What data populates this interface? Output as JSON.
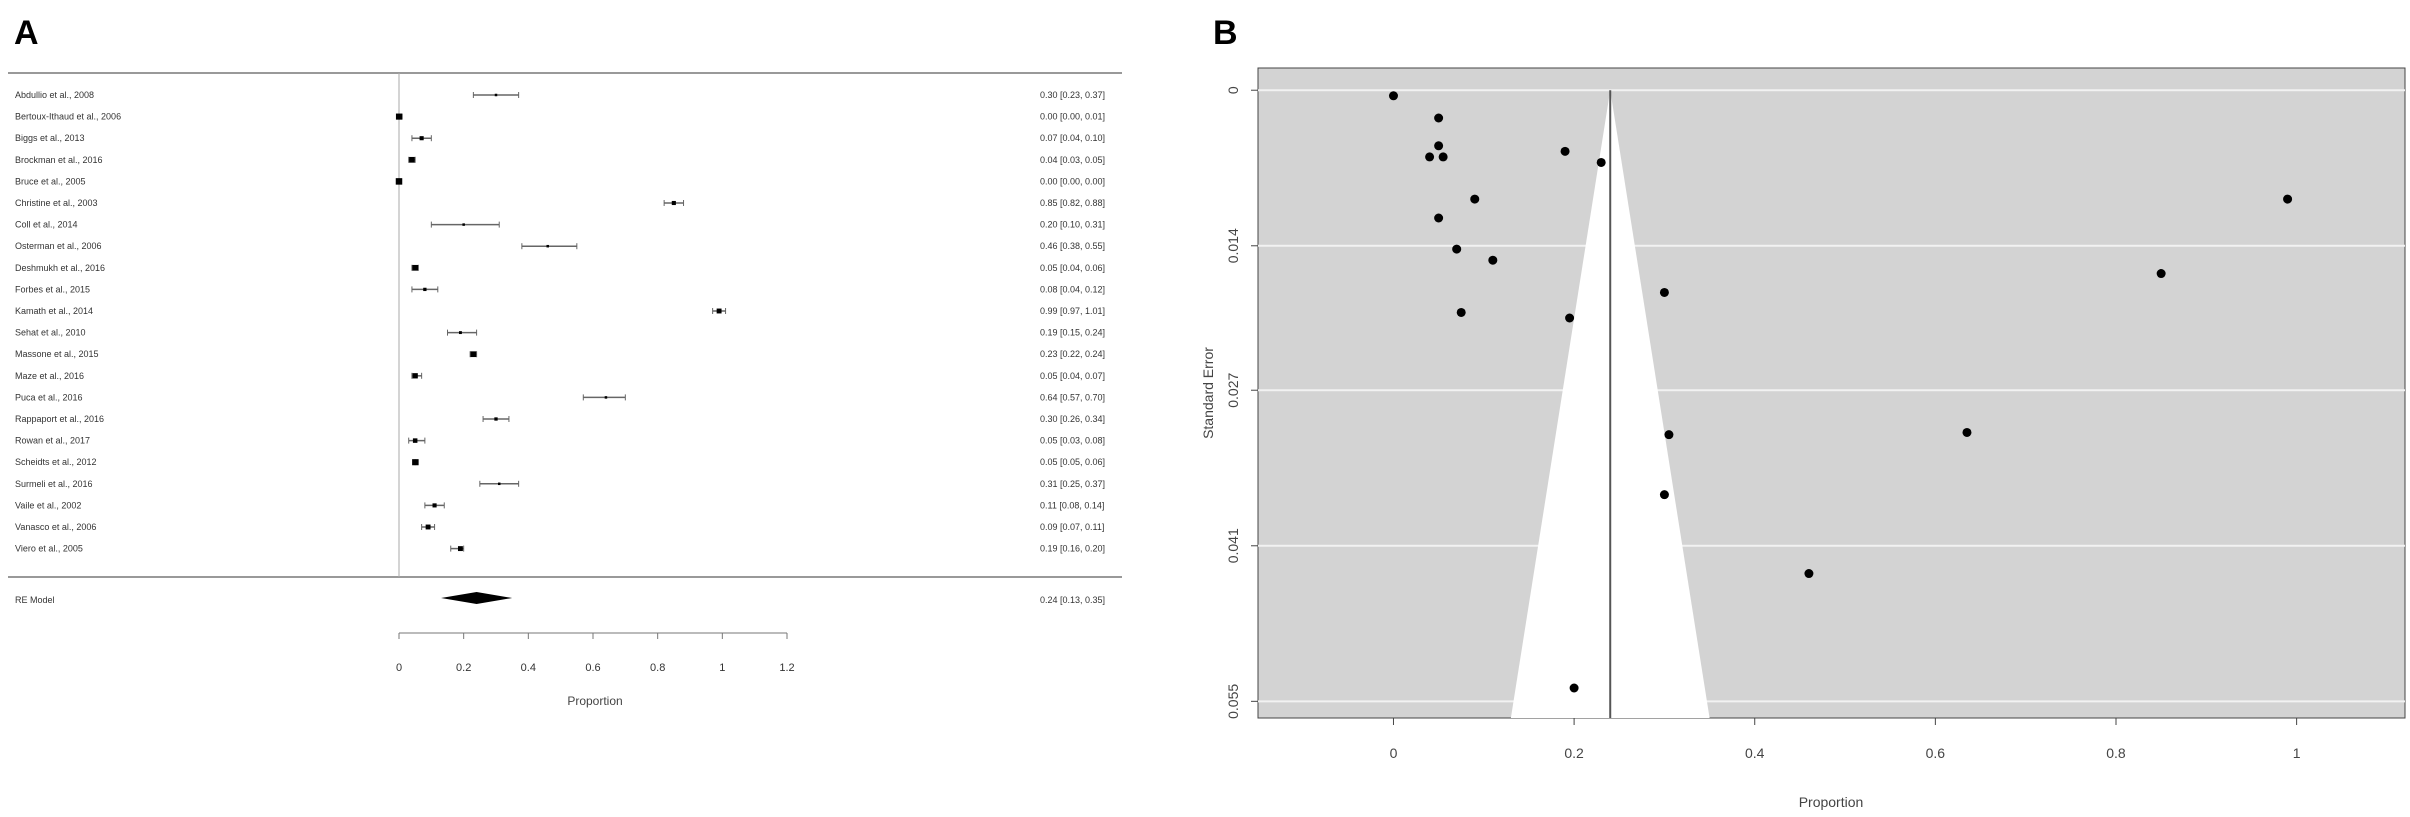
{
  "chart_data": [
    {
      "panel": "A",
      "type": "forest",
      "xlabel": "Proportion",
      "xlim": [
        0,
        1.2
      ],
      "x_ticks": [
        0,
        0.2,
        0.4,
        0.6,
        0.8,
        1,
        1.2
      ],
      "x_tick_labels": [
        "0",
        "0.2",
        "0.4",
        "0.6",
        "0.8",
        "1",
        "1.2"
      ],
      "studies": [
        {
          "label": "Abdullio et al., 2008",
          "est": 0.3,
          "lo": 0.23,
          "hi": 0.37,
          "ci_text": "0.30 [0.23, 0.37]"
        },
        {
          "label": "Bertoux-Ithaud et al., 2006",
          "est": 0.0,
          "lo": 0.0,
          "hi": 0.01,
          "ci_text": "0.00 [0.00, 0.01]"
        },
        {
          "label": "Biggs et al., 2013",
          "est": 0.07,
          "lo": 0.04,
          "hi": 0.1,
          "ci_text": "0.07 [0.04, 0.10]"
        },
        {
          "label": "Brockman et al., 2016",
          "est": 0.04,
          "lo": 0.03,
          "hi": 0.05,
          "ci_text": "0.04 [0.03, 0.05]"
        },
        {
          "label": "Bruce et al., 2005",
          "est": 0.0,
          "lo": 0.0,
          "hi": 0.0,
          "ci_text": "0.00 [0.00, 0.00]"
        },
        {
          "label": "Christine et al., 2003",
          "est": 0.85,
          "lo": 0.82,
          "hi": 0.88,
          "ci_text": "0.85 [0.82, 0.88]"
        },
        {
          "label": "Coll et al., 2014",
          "est": 0.2,
          "lo": 0.1,
          "hi": 0.31,
          "ci_text": "0.20 [0.10, 0.31]"
        },
        {
          "label": "Osterman et al., 2006",
          "est": 0.46,
          "lo": 0.38,
          "hi": 0.55,
          "ci_text": "0.46 [0.38, 0.55]"
        },
        {
          "label": "Deshmukh et al., 2016",
          "est": 0.05,
          "lo": 0.04,
          "hi": 0.06,
          "ci_text": "0.05 [0.04, 0.06]"
        },
        {
          "label": "Forbes et al., 2015",
          "est": 0.08,
          "lo": 0.04,
          "hi": 0.12,
          "ci_text": "0.08 [0.04, 0.12]"
        },
        {
          "label": "Kamath et al., 2014",
          "est": 0.99,
          "lo": 0.97,
          "hi": 1.01,
          "ci_text": "0.99 [0.97, 1.01]"
        },
        {
          "label": "Sehat et al., 2010",
          "est": 0.19,
          "lo": 0.15,
          "hi": 0.24,
          "ci_text": "0.19 [0.15, 0.24]"
        },
        {
          "label": "Massone et al., 2015",
          "est": 0.23,
          "lo": 0.22,
          "hi": 0.24,
          "ci_text": "0.23 [0.22, 0.24]"
        },
        {
          "label": "Maze et al., 2016",
          "est": 0.05,
          "lo": 0.04,
          "hi": 0.07,
          "ci_text": "0.05 [0.04, 0.07]"
        },
        {
          "label": "Puca et al., 2016",
          "est": 0.64,
          "lo": 0.57,
          "hi": 0.7,
          "ci_text": "0.64 [0.57, 0.70]"
        },
        {
          "label": "Rappaport et al., 2016",
          "est": 0.3,
          "lo": 0.26,
          "hi": 0.34,
          "ci_text": "0.30 [0.26, 0.34]"
        },
        {
          "label": "Rowan et al., 2017",
          "est": 0.05,
          "lo": 0.03,
          "hi": 0.08,
          "ci_text": "0.05 [0.03, 0.08]"
        },
        {
          "label": "Scheidts et al., 2012",
          "est": 0.05,
          "lo": 0.05,
          "hi": 0.06,
          "ci_text": "0.05 [0.05, 0.06]"
        },
        {
          "label": "Surmeli et al., 2016",
          "est": 0.31,
          "lo": 0.25,
          "hi": 0.37,
          "ci_text": "0.31 [0.25, 0.37]"
        },
        {
          "label": "Vaile et al., 2002",
          "est": 0.11,
          "lo": 0.08,
          "hi": 0.14,
          "ci_text": "0.11 [0.08, 0.14]"
        },
        {
          "label": "Vanasco et al., 2006",
          "est": 0.09,
          "lo": 0.07,
          "hi": 0.11,
          "ci_text": "0.09 [0.07, 0.11]"
        },
        {
          "label": "Viero et al., 2005",
          "est": 0.19,
          "lo": 0.16,
          "hi": 0.2,
          "ci_text": "0.19 [0.16, 0.20]"
        }
      ],
      "summary": {
        "label": "RE Model",
        "est": 0.24,
        "lo": 0.13,
        "hi": 0.35,
        "ci_text": "0.24 [0.13, 0.35]"
      }
    },
    {
      "panel": "B",
      "type": "scatter",
      "subtype": "funnel",
      "xlabel": "Proportion",
      "ylabel": "Standard Error",
      "xlim": [
        -0.15,
        1.12
      ],
      "ylim": [
        0.0565,
        -0.002
      ],
      "y_reversed": true,
      "x_ticks": [
        0,
        0.2,
        0.4,
        0.6,
        0.8,
        1
      ],
      "x_tick_labels": [
        "0",
        "0.2",
        "0.4",
        "0.6",
        "0.8",
        "1"
      ],
      "y_ticks": [
        0,
        0.014,
        0.027,
        0.041,
        0.055
      ],
      "y_tick_labels": [
        "0",
        "0.014",
        "0.027",
        "0.041",
        "0.055"
      ],
      "grid": true,
      "background": "#d3d3d3",
      "funnel_center": 0.24,
      "funnel_bottom": [
        0.13,
        0.35
      ],
      "points": [
        {
          "x": 0.0,
          "y": 0.0005
        },
        {
          "x": 0.05,
          "y": 0.0025
        },
        {
          "x": 0.05,
          "y": 0.005
        },
        {
          "x": 0.04,
          "y": 0.006
        },
        {
          "x": 0.055,
          "y": 0.006
        },
        {
          "x": 0.19,
          "y": 0.0055
        },
        {
          "x": 0.23,
          "y": 0.0065
        },
        {
          "x": 0.09,
          "y": 0.0098
        },
        {
          "x": 0.99,
          "y": 0.0098
        },
        {
          "x": 0.05,
          "y": 0.0115
        },
        {
          "x": 0.07,
          "y": 0.0143
        },
        {
          "x": 0.11,
          "y": 0.0153
        },
        {
          "x": 0.85,
          "y": 0.0165
        },
        {
          "x": 0.3,
          "y": 0.0182
        },
        {
          "x": 0.075,
          "y": 0.02
        },
        {
          "x": 0.195,
          "y": 0.0205
        },
        {
          "x": 0.305,
          "y": 0.031
        },
        {
          "x": 0.635,
          "y": 0.0308
        },
        {
          "x": 0.3,
          "y": 0.0364
        },
        {
          "x": 0.46,
          "y": 0.0435
        },
        {
          "x": 0.2,
          "y": 0.0538
        }
      ]
    }
  ],
  "panels": {
    "a_letter": "A",
    "b_letter": "B"
  },
  "colors": {
    "line": "#888888",
    "point": "#000000",
    "funnel_bg": "#d3d3d3",
    "grid": "#f0f0f0"
  }
}
